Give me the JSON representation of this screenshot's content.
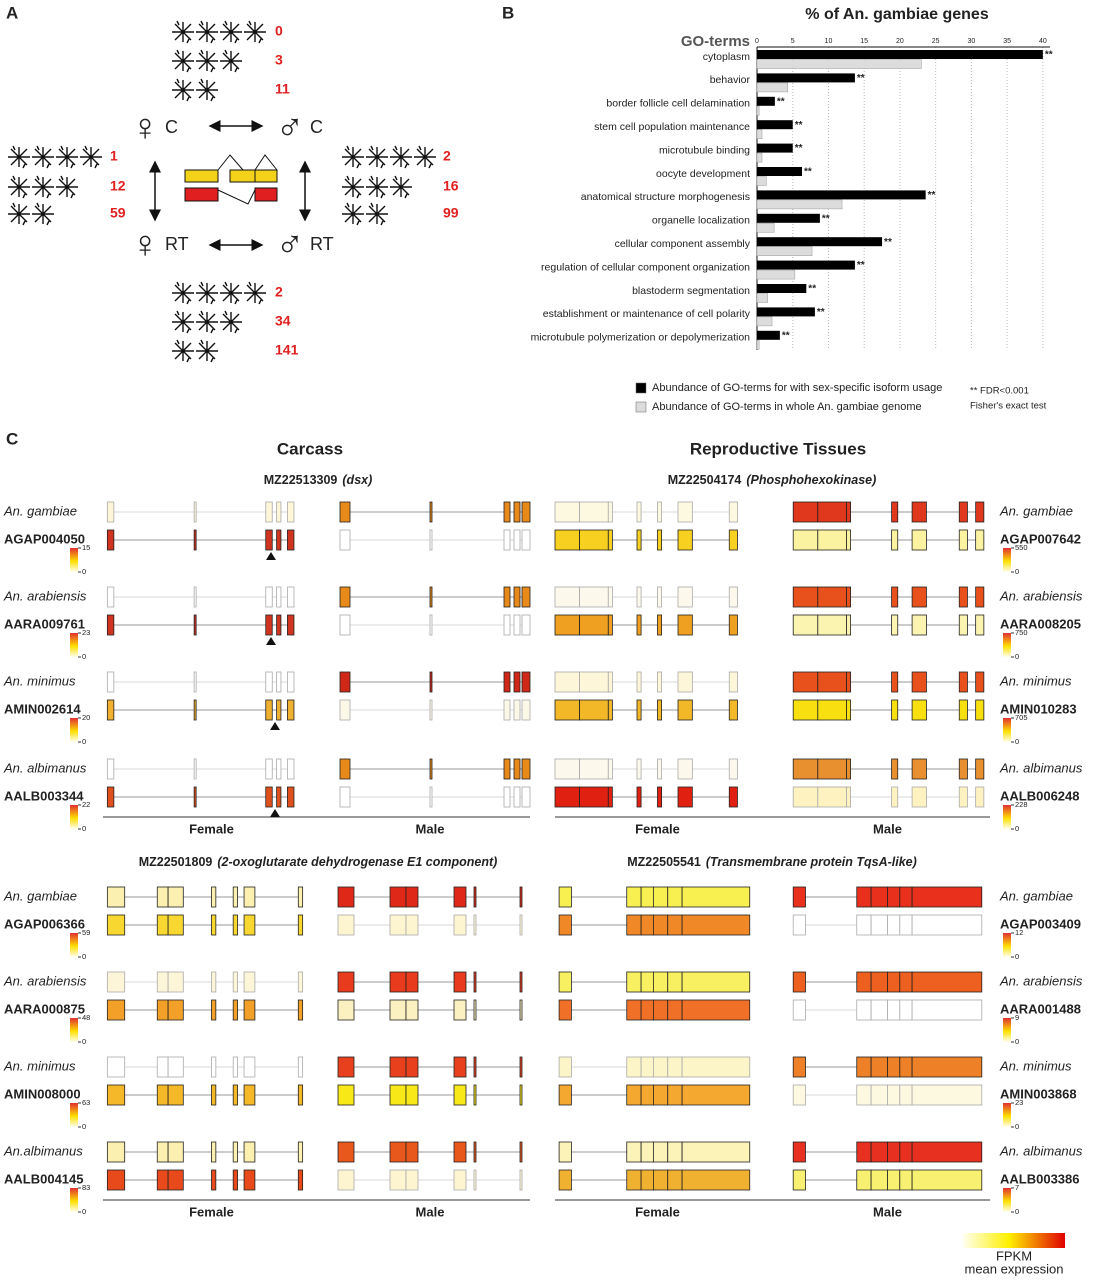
{
  "panel_a": {
    "label": "A",
    "nodes": [
      {
        "sex": "♀",
        "tissue": "C"
      },
      {
        "sex": "♂",
        "tissue": "C"
      },
      {
        "sex": "♀",
        "tissue": "RT"
      },
      {
        "sex": "♂",
        "tissue": "RT"
      }
    ],
    "counts": {
      "top": [
        0,
        3,
        11
      ],
      "left": [
        1,
        12,
        59
      ],
      "right": [
        2,
        16,
        99
      ],
      "bottom": [
        2,
        34,
        141
      ]
    }
  },
  "chart_data": {
    "type": "hbar",
    "panel_label": "B",
    "title": "% of An. gambiae genes",
    "y_axis_label": "GO-terms",
    "categories": [
      "cytoplasm",
      "behavior",
      "border follicle cell delamination",
      "stem cell population maintenance",
      "microtubule binding",
      "oocyte development",
      "anatomical structure morphogenesis",
      "organelle localization",
      "cellular component assembly",
      "regulation of cellular component organization",
      "blastoderm segmentation",
      "establishment or maintenance of cell polarity",
      "microtubule polymerization or depolymerization"
    ],
    "series": [
      {
        "name": "Abundance of GO-terms for with sex-specific isoform usage",
        "color": "#000000",
        "values": [
          40,
          13.7,
          2.5,
          5,
          5,
          6.3,
          23.6,
          8.8,
          17.5,
          13.7,
          6.9,
          8.1,
          3.2
        ]
      },
      {
        "name": "Abundance of GO-terms in whole An. gambiae genome",
        "color": "#dcdcdc",
        "values": [
          23,
          4.3,
          0.3,
          0.7,
          0.7,
          1.3,
          11.9,
          2.4,
          7.7,
          5.3,
          1.5,
          2.1,
          0.3
        ]
      }
    ],
    "significance": [
      "**",
      "**",
      "**",
      "**",
      "**",
      "**",
      "**",
      "**",
      "**",
      "**",
      "**",
      "**",
      "**"
    ],
    "xlim": [
      0,
      41
    ],
    "xticks": [
      0,
      5,
      10,
      15,
      20,
      25,
      30,
      35,
      40
    ],
    "grid": true,
    "note": [
      "** FDR<0.001",
      "Fisher's exact test"
    ]
  },
  "panel_c": {
    "label": "C",
    "headers": [
      "Carcass",
      "Reproductive Tissues"
    ],
    "x_labels": [
      "Female",
      "Male"
    ],
    "legend": {
      "title": "FPKM",
      "subtitle": "mean expression"
    },
    "panels": [
      {
        "gene_id": "MZ22513309",
        "gene_name": "(dsx)",
        "rows": [
          {
            "species": "An. gambiae",
            "gene": "AGAP004050",
            "scale": [
              15,
              0
            ]
          },
          {
            "species": "An. arabiensis",
            "gene": "AARA009761",
            "scale": [
              23,
              0
            ]
          },
          {
            "species": "An. minimus",
            "gene": "AMIN002614",
            "scale": [
              20,
              0
            ]
          },
          {
            "species": "An. albimanus",
            "gene": "AALB003344",
            "scale": [
              22,
              0
            ]
          }
        ]
      },
      {
        "gene_id": "MZ22504174",
        "gene_name": "(Phosphohexokinase)",
        "rows": [
          {
            "species": "An. gambiae",
            "gene": "AGAP007642",
            "scale": [
              550,
              0
            ]
          },
          {
            "species": "An. arabiensis",
            "gene": "AARA008205",
            "scale": [
              750,
              0
            ]
          },
          {
            "species": "An. minimus",
            "gene": "AMIN010283",
            "scale": [
              705,
              0
            ]
          },
          {
            "species": "An. albimanus",
            "gene": "AALB006248",
            "scale": [
              228,
              0
            ]
          }
        ]
      },
      {
        "gene_id": "MZ22501809",
        "gene_name": "(2-oxoglutarate dehydrogenase E1 component)",
        "rows": [
          {
            "species": "An. gambiae",
            "gene": "AGAP006366",
            "scale": [
              59,
              0
            ]
          },
          {
            "species": "An. arabiensis",
            "gene": "AARA000875",
            "scale": [
              48,
              0
            ]
          },
          {
            "species": "An. minimus",
            "gene": "AMIN008000",
            "scale": [
              63,
              0
            ]
          },
          {
            "species": "An.albimanus",
            "gene": "AALB004145",
            "scale": [
              83,
              0
            ]
          }
        ]
      },
      {
        "gene_id": "MZ22505541",
        "gene_name": "(Transmembrane protein TqsA-like)",
        "rows": [
          {
            "species": "An. gambiae",
            "gene": "AGAP003409",
            "scale": [
              12,
              0
            ]
          },
          {
            "species": "An. arabiensis",
            "gene": "AARA001488",
            "scale": [
              9,
              0
            ]
          },
          {
            "species": "An. minimus",
            "gene": "AMIN003868",
            "scale": [
              23,
              0
            ]
          },
          {
            "species": "An. albimanus",
            "gene": "AALB003386",
            "scale": [
              7,
              0
            ]
          }
        ]
      }
    ]
  }
}
